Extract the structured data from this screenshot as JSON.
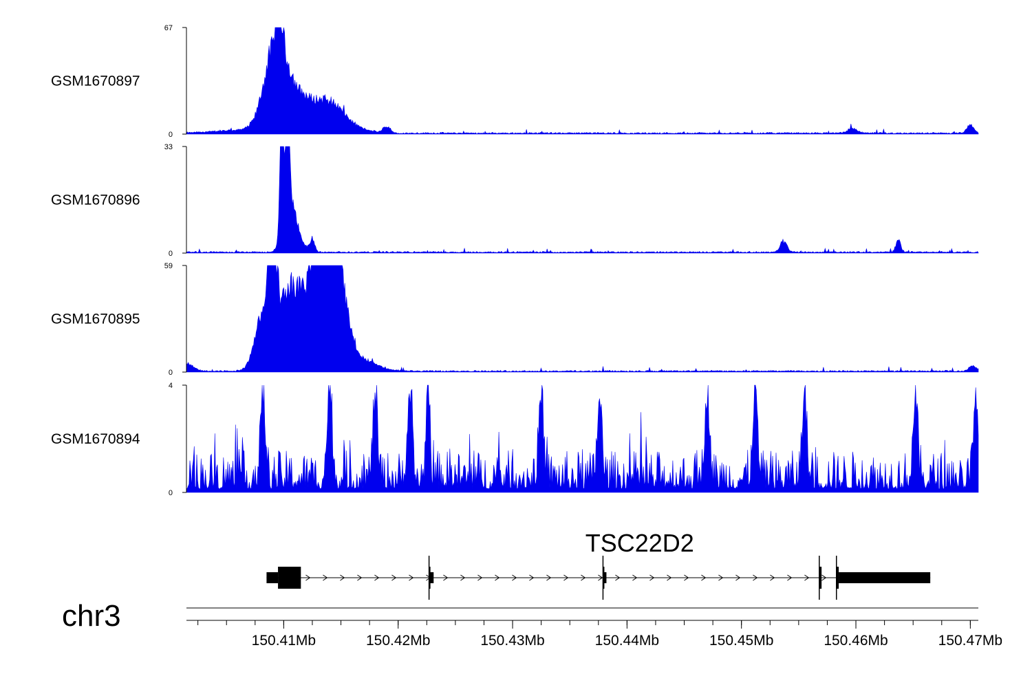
{
  "chart_data": {
    "type": "area",
    "chromosome": "chr3",
    "x_unit": "Mb",
    "x_range": [
      150.4015,
      150.4707
    ],
    "x_ticks": [
      150.41,
      150.42,
      150.43,
      150.44,
      150.45,
      150.46,
      150.47
    ],
    "x_tick_labels": [
      "150.41Mb",
      "150.42Mb",
      "150.43Mb",
      "150.44Mb",
      "150.45Mb",
      "150.46Mb",
      "150.47Mb"
    ],
    "color": "#0000ee",
    "series": [
      {
        "name": "GSM1670897",
        "ylim": [
          0,
          67
        ],
        "y_tick_labels": [
          "0",
          "67"
        ],
        "peaks": [
          {
            "x": 150.4066,
            "height": 2,
            "width": 0.0025
          },
          {
            "x": 150.408,
            "height": 8,
            "width": 0.0007
          },
          {
            "x": 150.4085,
            "height": 22,
            "width": 0.0005
          },
          {
            "x": 150.4091,
            "height": 33,
            "width": 0.0004
          },
          {
            "x": 150.4095,
            "height": 67,
            "width": 0.00014
          },
          {
            "x": 150.4097,
            "height": 45,
            "width": 0.0003
          },
          {
            "x": 150.4103,
            "height": 22,
            "width": 0.0004
          },
          {
            "x": 150.4109,
            "height": 18,
            "width": 0.0008
          },
          {
            "x": 150.4121,
            "height": 8,
            "width": 0.0012
          },
          {
            "x": 150.4133,
            "height": 12,
            "width": 0.0014
          },
          {
            "x": 150.4145,
            "height": 7,
            "width": 0.001
          },
          {
            "x": 150.4158,
            "height": 3,
            "width": 0.0015
          },
          {
            "x": 150.419,
            "height": 4,
            "width": 0.0003
          },
          {
            "x": 150.4597,
            "height": 3,
            "width": 0.0004
          },
          {
            "x": 150.47,
            "height": 5,
            "width": 0.0003
          }
        ]
      },
      {
        "name": "GSM1670896",
        "ylim": [
          0,
          33
        ],
        "y_tick_labels": [
          "0",
          "33"
        ],
        "peaks": [
          {
            "x": 150.4098,
            "height": 33,
            "width": 0.00012
          },
          {
            "x": 150.4101,
            "height": 20,
            "width": 0.00035
          },
          {
            "x": 150.4104,
            "height": 26,
            "width": 0.00015
          },
          {
            "x": 150.4108,
            "height": 10,
            "width": 0.0004
          },
          {
            "x": 150.4114,
            "height": 3,
            "width": 0.0005
          },
          {
            "x": 150.4125,
            "height": 4,
            "width": 0.0002
          },
          {
            "x": 150.4537,
            "height": 3,
            "width": 0.0003
          },
          {
            "x": 150.4637,
            "height": 4,
            "width": 0.0002
          }
        ]
      },
      {
        "name": "GSM1670895",
        "ylim": [
          0,
          59
        ],
        "y_tick_labels": [
          "0",
          "59"
        ],
        "peaks": [
          {
            "x": 150.4015,
            "height": 4,
            "width": 0.0006
          },
          {
            "x": 150.4082,
            "height": 30,
            "width": 0.0007
          },
          {
            "x": 150.4088,
            "height": 52,
            "width": 0.0002
          },
          {
            "x": 150.4091,
            "height": 48,
            "width": 0.0003
          },
          {
            "x": 150.41,
            "height": 28,
            "width": 0.0008
          },
          {
            "x": 150.4108,
            "height": 22,
            "width": 0.0007
          },
          {
            "x": 150.4116,
            "height": 13,
            "width": 0.0005
          },
          {
            "x": 150.4123,
            "height": 22,
            "width": 0.0008
          },
          {
            "x": 150.413,
            "height": 44,
            "width": 0.0006
          },
          {
            "x": 150.4136,
            "height": 38,
            "width": 0.0007
          },
          {
            "x": 150.4142,
            "height": 40,
            "width": 0.0007
          },
          {
            "x": 150.4149,
            "height": 30,
            "width": 0.0008
          },
          {
            "x": 150.4158,
            "height": 6,
            "width": 0.0015
          },
          {
            "x": 150.4178,
            "height": 2,
            "width": 0.001
          },
          {
            "x": 150.4702,
            "height": 3,
            "width": 0.0003
          }
        ]
      },
      {
        "name": "GSM1670894",
        "ylim": [
          0,
          4
        ],
        "y_tick_labels": [
          "0",
          "4"
        ],
        "noise_level": 0.9,
        "peaks": [
          {
            "x": 150.4082,
            "height": 3.0,
            "width": 0.0002
          },
          {
            "x": 150.414,
            "height": 3.5,
            "width": 0.0002
          },
          {
            "x": 150.418,
            "height": 3.1,
            "width": 0.0002
          },
          {
            "x": 150.421,
            "height": 3.1,
            "width": 0.0002
          },
          {
            "x": 150.4226,
            "height": 4.0,
            "width": 0.00015
          },
          {
            "x": 150.4325,
            "height": 3.0,
            "width": 0.0002
          },
          {
            "x": 150.4376,
            "height": 3.0,
            "width": 0.0002
          },
          {
            "x": 150.447,
            "height": 3.1,
            "width": 0.0002
          },
          {
            "x": 150.4512,
            "height": 3.4,
            "width": 0.0002
          },
          {
            "x": 150.4555,
            "height": 3.1,
            "width": 0.0002
          },
          {
            "x": 150.4652,
            "height": 3.0,
            "width": 0.0002
          },
          {
            "x": 150.4705,
            "height": 3.0,
            "width": 0.0002
          }
        ]
      }
    ],
    "gene": {
      "name": "TSC22D2",
      "strand": "+",
      "start": 150.4085,
      "end": 150.4665,
      "exons": [
        {
          "start": 150.4085,
          "end": 150.4095,
          "kind": "utr"
        },
        {
          "start": 150.4095,
          "end": 150.4115,
          "kind": "cds"
        },
        {
          "start": 150.4227,
          "end": 150.4228,
          "kind": "cds"
        },
        {
          "start": 150.4228,
          "end": 150.4231,
          "kind": "utr"
        },
        {
          "start": 150.4379,
          "end": 150.438,
          "kind": "cds"
        },
        {
          "start": 150.438,
          "end": 150.4382,
          "kind": "utr"
        },
        {
          "start": 150.4568,
          "end": 150.457,
          "kind": "cds"
        },
        {
          "start": 150.4583,
          "end": 150.4585,
          "kind": "cds"
        },
        {
          "start": 150.4585,
          "end": 150.4665,
          "kind": "utr"
        }
      ]
    }
  }
}
